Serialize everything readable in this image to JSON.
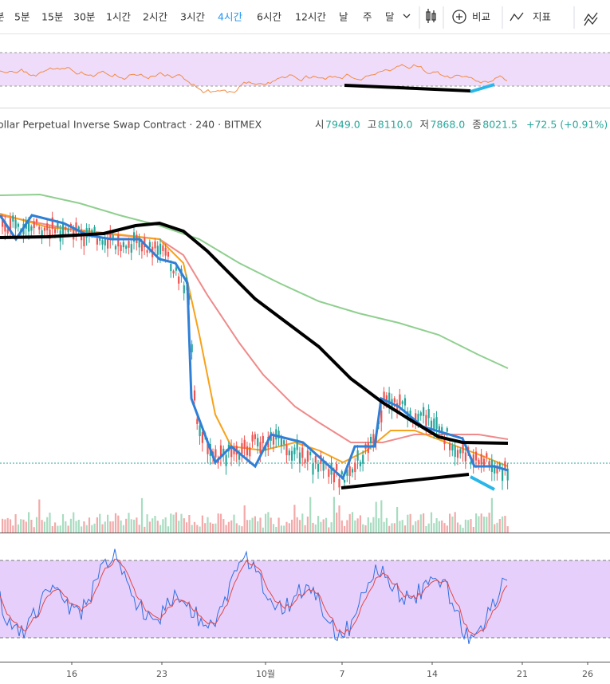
{
  "toolbar": {
    "intervals": [
      "분",
      "5분",
      "15분",
      "30분",
      "1시간",
      "2시간",
      "3시간",
      "4시간",
      "6시간",
      "12시간",
      "날",
      "주",
      "달"
    ],
    "buttons": [
      "비교",
      "지표"
    ]
  },
  "header": {
    "symbol": "ollar Perpetual Inverse Swap Contract · 240 · BITMEX",
    "ohlc": [
      {
        "label": "시",
        "value": "7949.0"
      },
      {
        "label": "고",
        "value": "8110.0"
      },
      {
        "label": "저",
        "value": "7868.0"
      },
      {
        "label": "종",
        "value": "8021.5"
      }
    ],
    "change": "+72.5 (+0.91%)"
  },
  "x_axis": {
    "labels": [
      "16",
      "23",
      "10월",
      "7",
      "14",
      "21",
      "26"
    ]
  }
}
